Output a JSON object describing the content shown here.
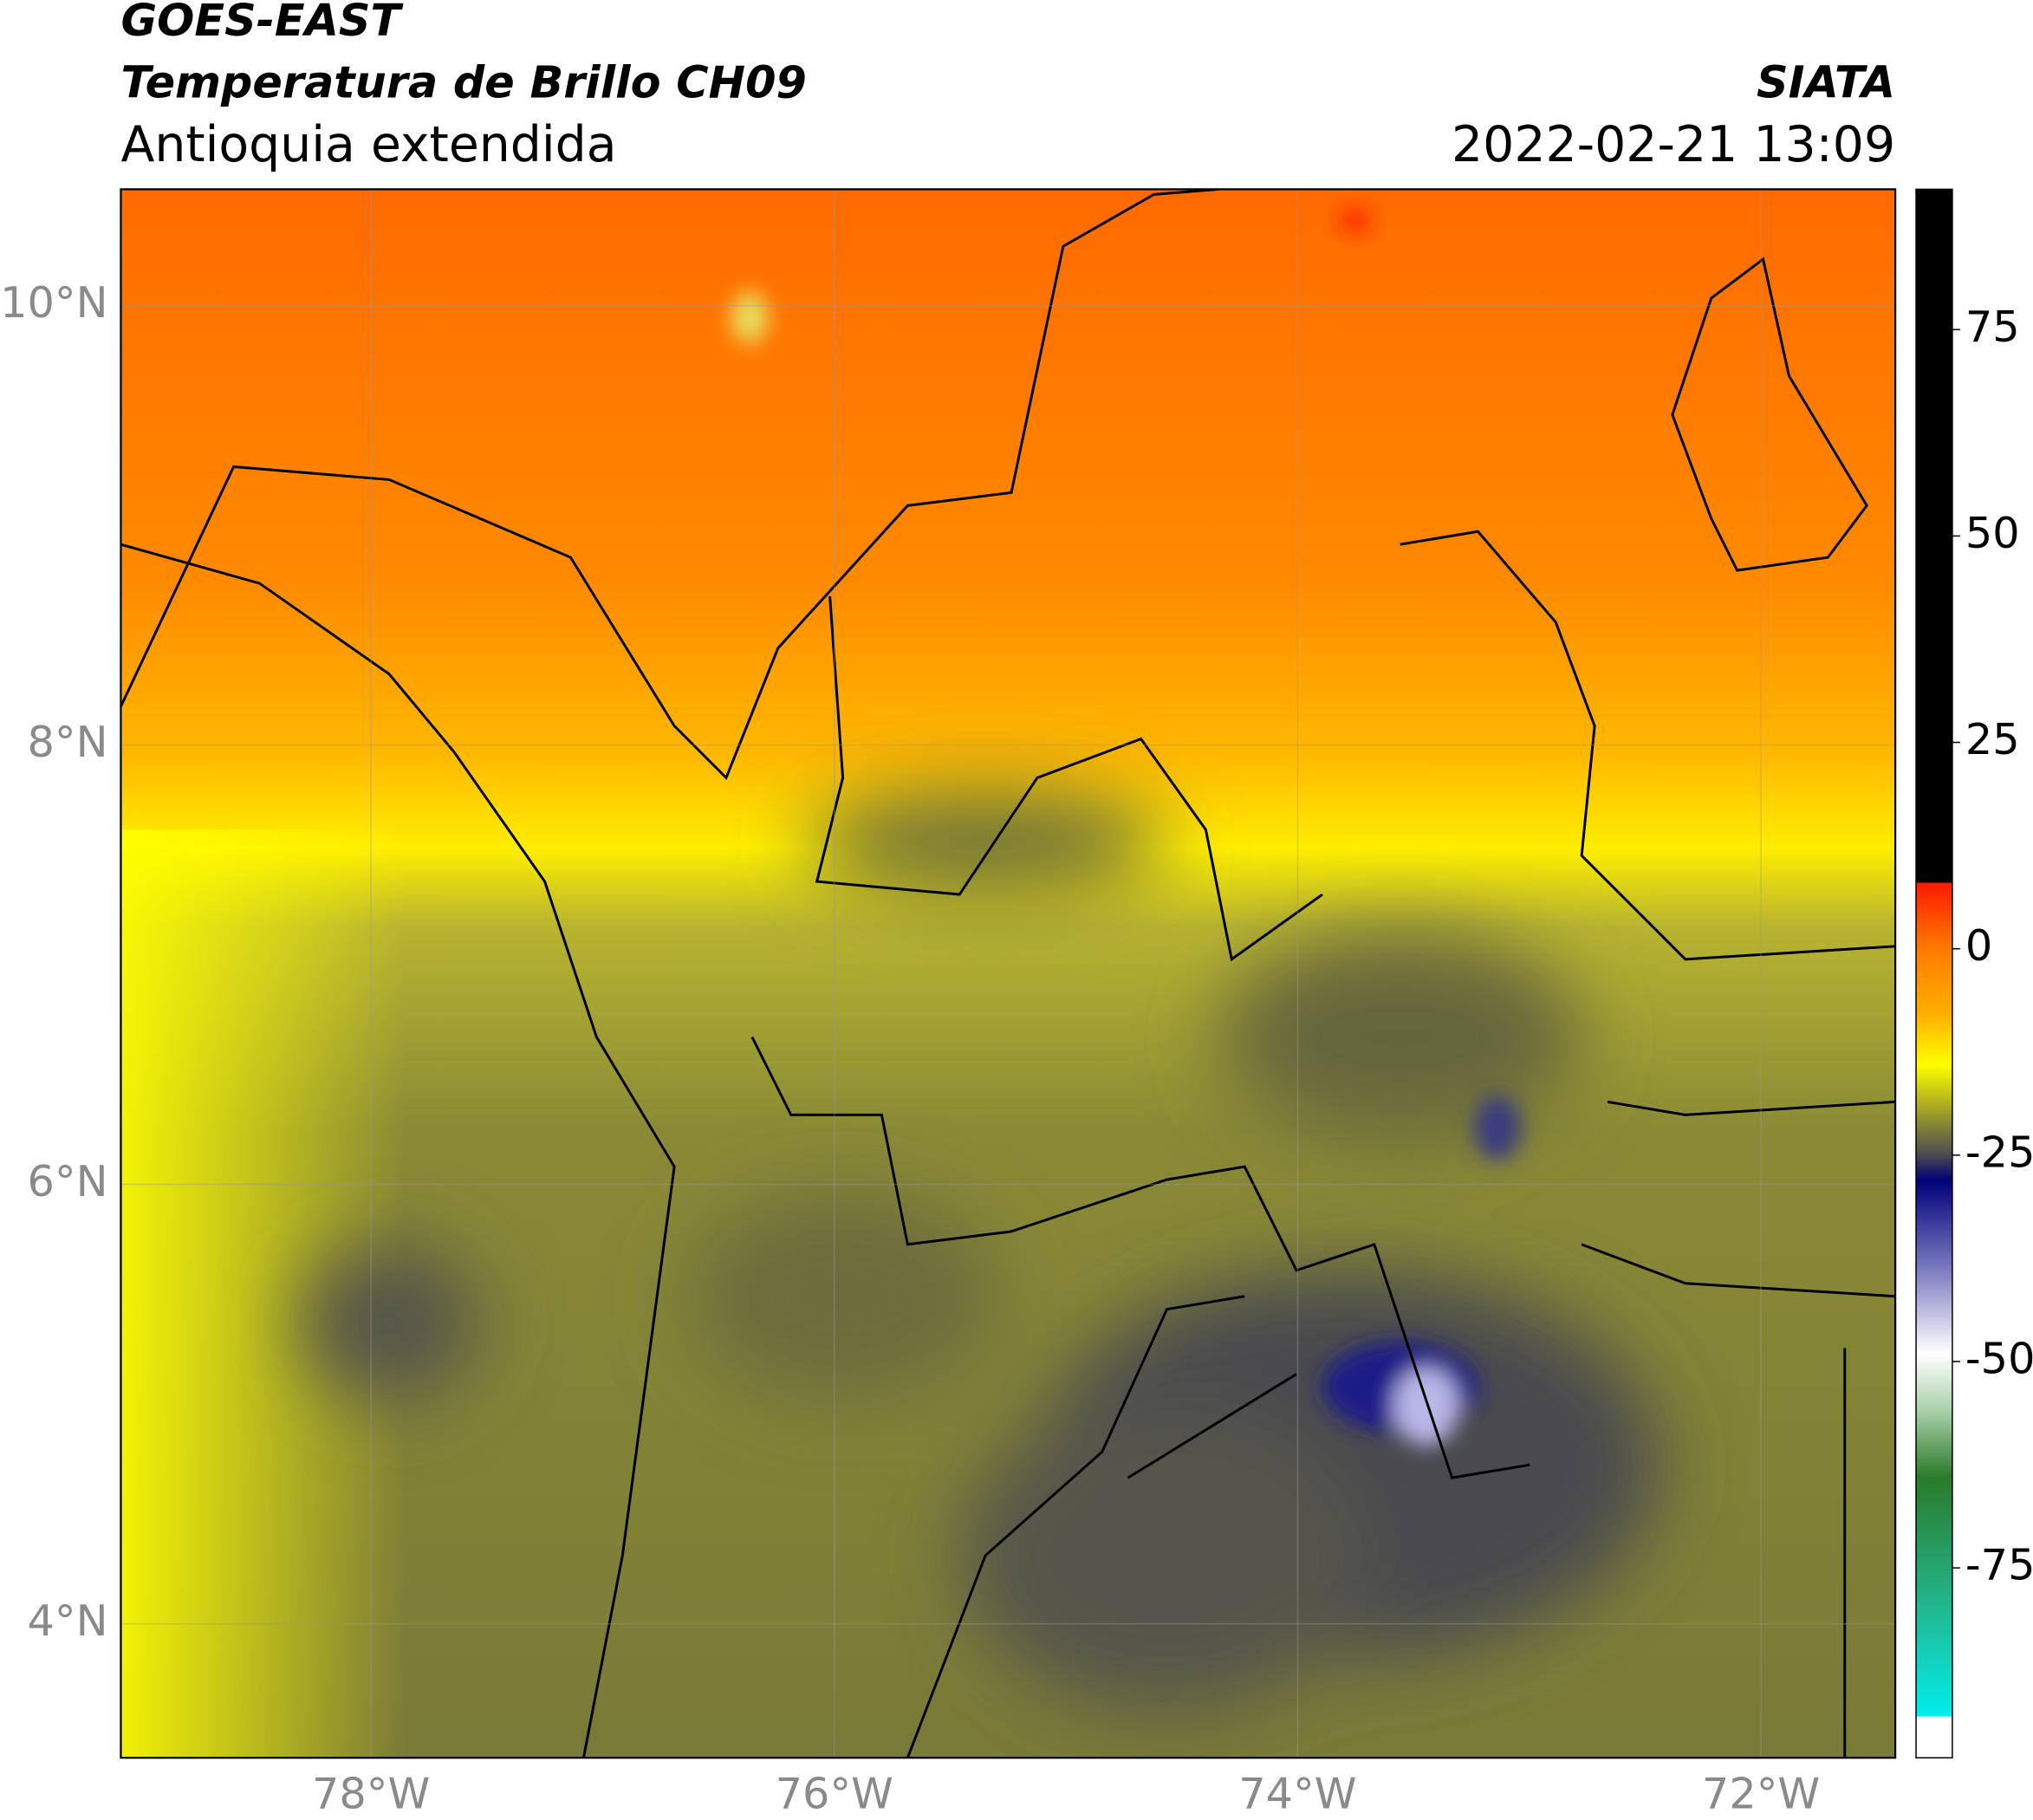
{
  "header": {
    "title": "GOES-EAST",
    "subtitle": "Temperatura de Brillo CH09",
    "region": "Antioquia extendida",
    "source": "SIATA",
    "datetime": "2022-02-21 13:09"
  },
  "map": {
    "xlim": [
      -79.08,
      -71.42
    ],
    "ylim": [
      3.39,
      10.53
    ],
    "xticks": [
      {
        "value": -78,
        "label": "78°W"
      },
      {
        "value": -76,
        "label": "76°W"
      },
      {
        "value": -74,
        "label": "74°W"
      },
      {
        "value": -72,
        "label": "72°W"
      }
    ],
    "yticks": [
      {
        "value": 10,
        "label": "10°N"
      },
      {
        "value": 8,
        "label": "8°N"
      },
      {
        "value": 6,
        "label": "6°N"
      },
      {
        "value": 4,
        "label": "4°N"
      }
    ],
    "grid": true
  },
  "colorbar": {
    "lim": [
      -98,
      92
    ],
    "ticks": [
      75,
      50,
      25,
      0,
      -25,
      -50,
      -75
    ],
    "stops": [
      {
        "value": 92,
        "color": "#000000"
      },
      {
        "value": 8,
        "color": "#000000"
      },
      {
        "value": 8,
        "color": "#ff1a00"
      },
      {
        "value": 0,
        "color": "#ff7a00"
      },
      {
        "value": -8,
        "color": "#ffb000"
      },
      {
        "value": -14,
        "color": "#ffff00"
      },
      {
        "value": -20,
        "color": "#9a9a2a"
      },
      {
        "value": -25,
        "color": "#4a4a52"
      },
      {
        "value": -28,
        "color": "#00007a"
      },
      {
        "value": -40,
        "color": "#8a8ac8"
      },
      {
        "value": -49,
        "color": "#ffffff"
      },
      {
        "value": -56,
        "color": "#a8d0a8"
      },
      {
        "value": -64,
        "color": "#2a7a2a"
      },
      {
        "value": -80,
        "color": "#22b890"
      },
      {
        "value": -93,
        "color": "#00eeee"
      },
      {
        "value": -93,
        "color": "#ffffff"
      },
      {
        "value": -98,
        "color": "#ffffff"
      }
    ]
  }
}
